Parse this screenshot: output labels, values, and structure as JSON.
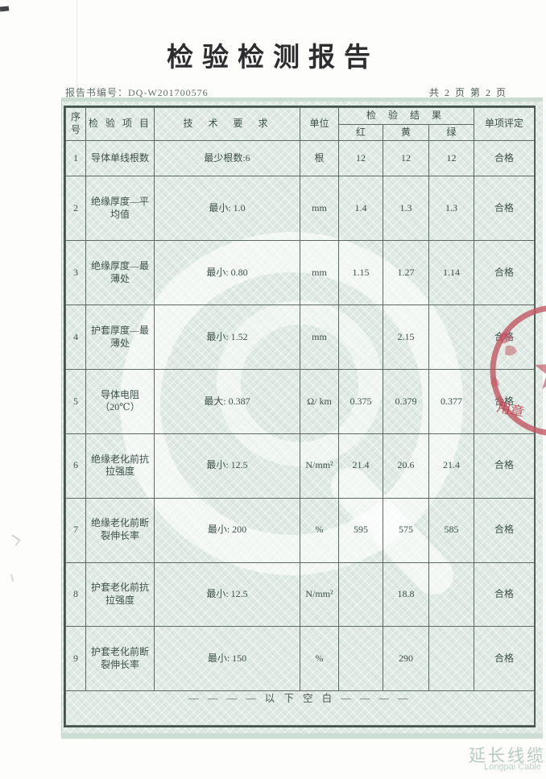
{
  "page": {
    "title": "检验检测报告",
    "report_no": "报告书编号：DQ-W201700576",
    "page_info": "共 2 页 第 2 页",
    "footer_cn": "延长线缆",
    "footer_en": "Longpai Cable"
  },
  "table": {
    "headers": {
      "seq": "序号",
      "item": "检 验 项 目",
      "requirement": "技 术 要 求",
      "unit": "单位",
      "result": "检 验 结 果",
      "sub_red": "红",
      "sub_yellow": "黄",
      "sub_green": "绿",
      "verdict": "单项评定"
    },
    "below_blank": "— — — — 以 下 空 白 — — — —",
    "rows": [
      {
        "no": "1",
        "item": "导体单线根数",
        "req": "最少根数:6",
        "unit": "根",
        "red": "12",
        "yellow": "12",
        "green": "12",
        "verdict": "合格"
      },
      {
        "no": "2",
        "item": "绝缘厚度—平均值",
        "req": "最小: 1.0",
        "unit": "mm",
        "red": "1.4",
        "yellow": "1.3",
        "green": "1.3",
        "verdict": "合格"
      },
      {
        "no": "3",
        "item": "绝缘厚度—最薄处",
        "req": "最小: 0.80",
        "unit": "mm",
        "red": "1.15",
        "yellow": "1.27",
        "green": "1.14",
        "verdict": "合格"
      },
      {
        "no": "4",
        "item": "护套厚度—最薄处",
        "req": "最小: 1.52",
        "unit": "mm",
        "red": "",
        "yellow": "2.15",
        "green": "",
        "verdict": "合格"
      },
      {
        "no": "5",
        "item": "导体电阻（20℃）",
        "req": "最大: 0.387",
        "unit": "Ω/ km",
        "red": "0.375",
        "yellow": "0.379",
        "green": "0.377",
        "verdict": "合格"
      },
      {
        "no": "6",
        "item": "绝缘老化前抗拉强度",
        "req": "最小: 12.5",
        "unit": "N/mm²",
        "red": "21.4",
        "yellow": "20.6",
        "green": "21.4",
        "verdict": "合格"
      },
      {
        "no": "7",
        "item": "绝缘老化前断裂伸长率",
        "req": "最小: 200",
        "unit": "%",
        "red": "595",
        "yellow": "575",
        "green": "585",
        "verdict": "合格"
      },
      {
        "no": "8",
        "item": "护套老化前抗拉强度",
        "req": "最小: 12.5",
        "unit": "N/mm²",
        "red": "",
        "yellow": "18.8",
        "green": "",
        "verdict": "合格"
      },
      {
        "no": "9",
        "item": "护套老化前断裂伸长率",
        "req": "最小: 150",
        "unit": "%",
        "red": "",
        "yellow": "290",
        "green": "",
        "verdict": "合格"
      }
    ]
  },
  "stamp": {
    "bottom_text": "用章",
    "color": "#c2525e"
  },
  "colors": {
    "panel_green": "#dce8e1",
    "table_border": "#5a6a63",
    "outer_border": "#44544d",
    "text": "#3e504b",
    "stamp_red": "#c2525e",
    "footer_watermark": "#b5cbc1"
  }
}
